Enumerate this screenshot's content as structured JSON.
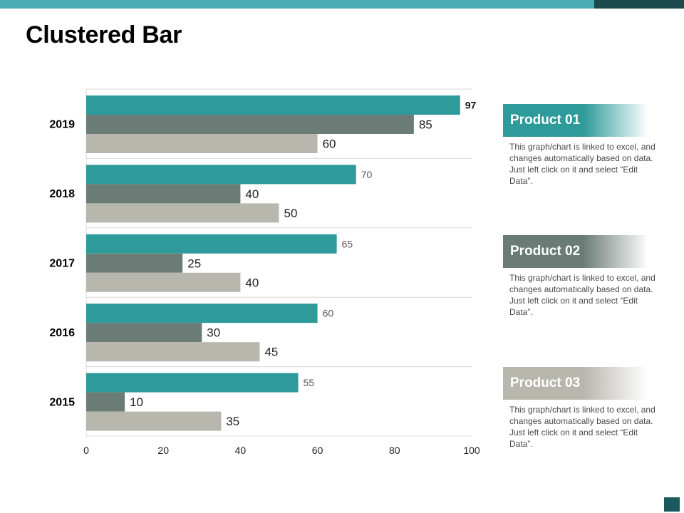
{
  "slide": {
    "title": "Clustered Bar"
  },
  "colors": {
    "teal": "#2e9a9a",
    "dark_gray_green": "#6b7c76",
    "light_gray": "#b8b7ae",
    "topbar": "#4aabb4",
    "topbar_end": "#1a4a4e",
    "corner": "#1a5a5e",
    "grid": "#d9d9d9"
  },
  "chart_data": {
    "type": "bar",
    "orientation": "horizontal",
    "title": "Clustered Bar",
    "categories": [
      "2019",
      "2018",
      "2017",
      "2016",
      "2015"
    ],
    "series": [
      {
        "name": "Product 01",
        "color": "#2e9a9a",
        "values": [
          97,
          70,
          65,
          60,
          55
        ]
      },
      {
        "name": "Product 02",
        "color": "#6b7c76",
        "values": [
          85,
          40,
          25,
          30,
          10
        ]
      },
      {
        "name": "Product 03",
        "color": "#b8b7ae",
        "values": [
          60,
          50,
          40,
          45,
          35
        ]
      }
    ],
    "xlim": [
      0,
      100
    ],
    "xticks": [
      0,
      20,
      40,
      60,
      80,
      100
    ],
    "xlabel": "",
    "ylabel": "",
    "grid": "horizontal separators"
  },
  "panels": [
    {
      "title": "Product 01",
      "description": "This graph/chart is linked to excel, and changes automatically based on data. Just left click on it and select “Edit Data”.",
      "color_from": "#2e9a9a"
    },
    {
      "title": "Product 02",
      "description": "This graph/chart is linked to excel, and changes automatically based on data. Just left click on it and select “Edit Data”.",
      "color_from": "#6b7c76"
    },
    {
      "title": "Product 03",
      "description": "This graph/chart is linked to excel, and changes automatically based on data. Just left click on it and select “Edit Data”.",
      "color_from": "#b8b7ae"
    }
  ]
}
